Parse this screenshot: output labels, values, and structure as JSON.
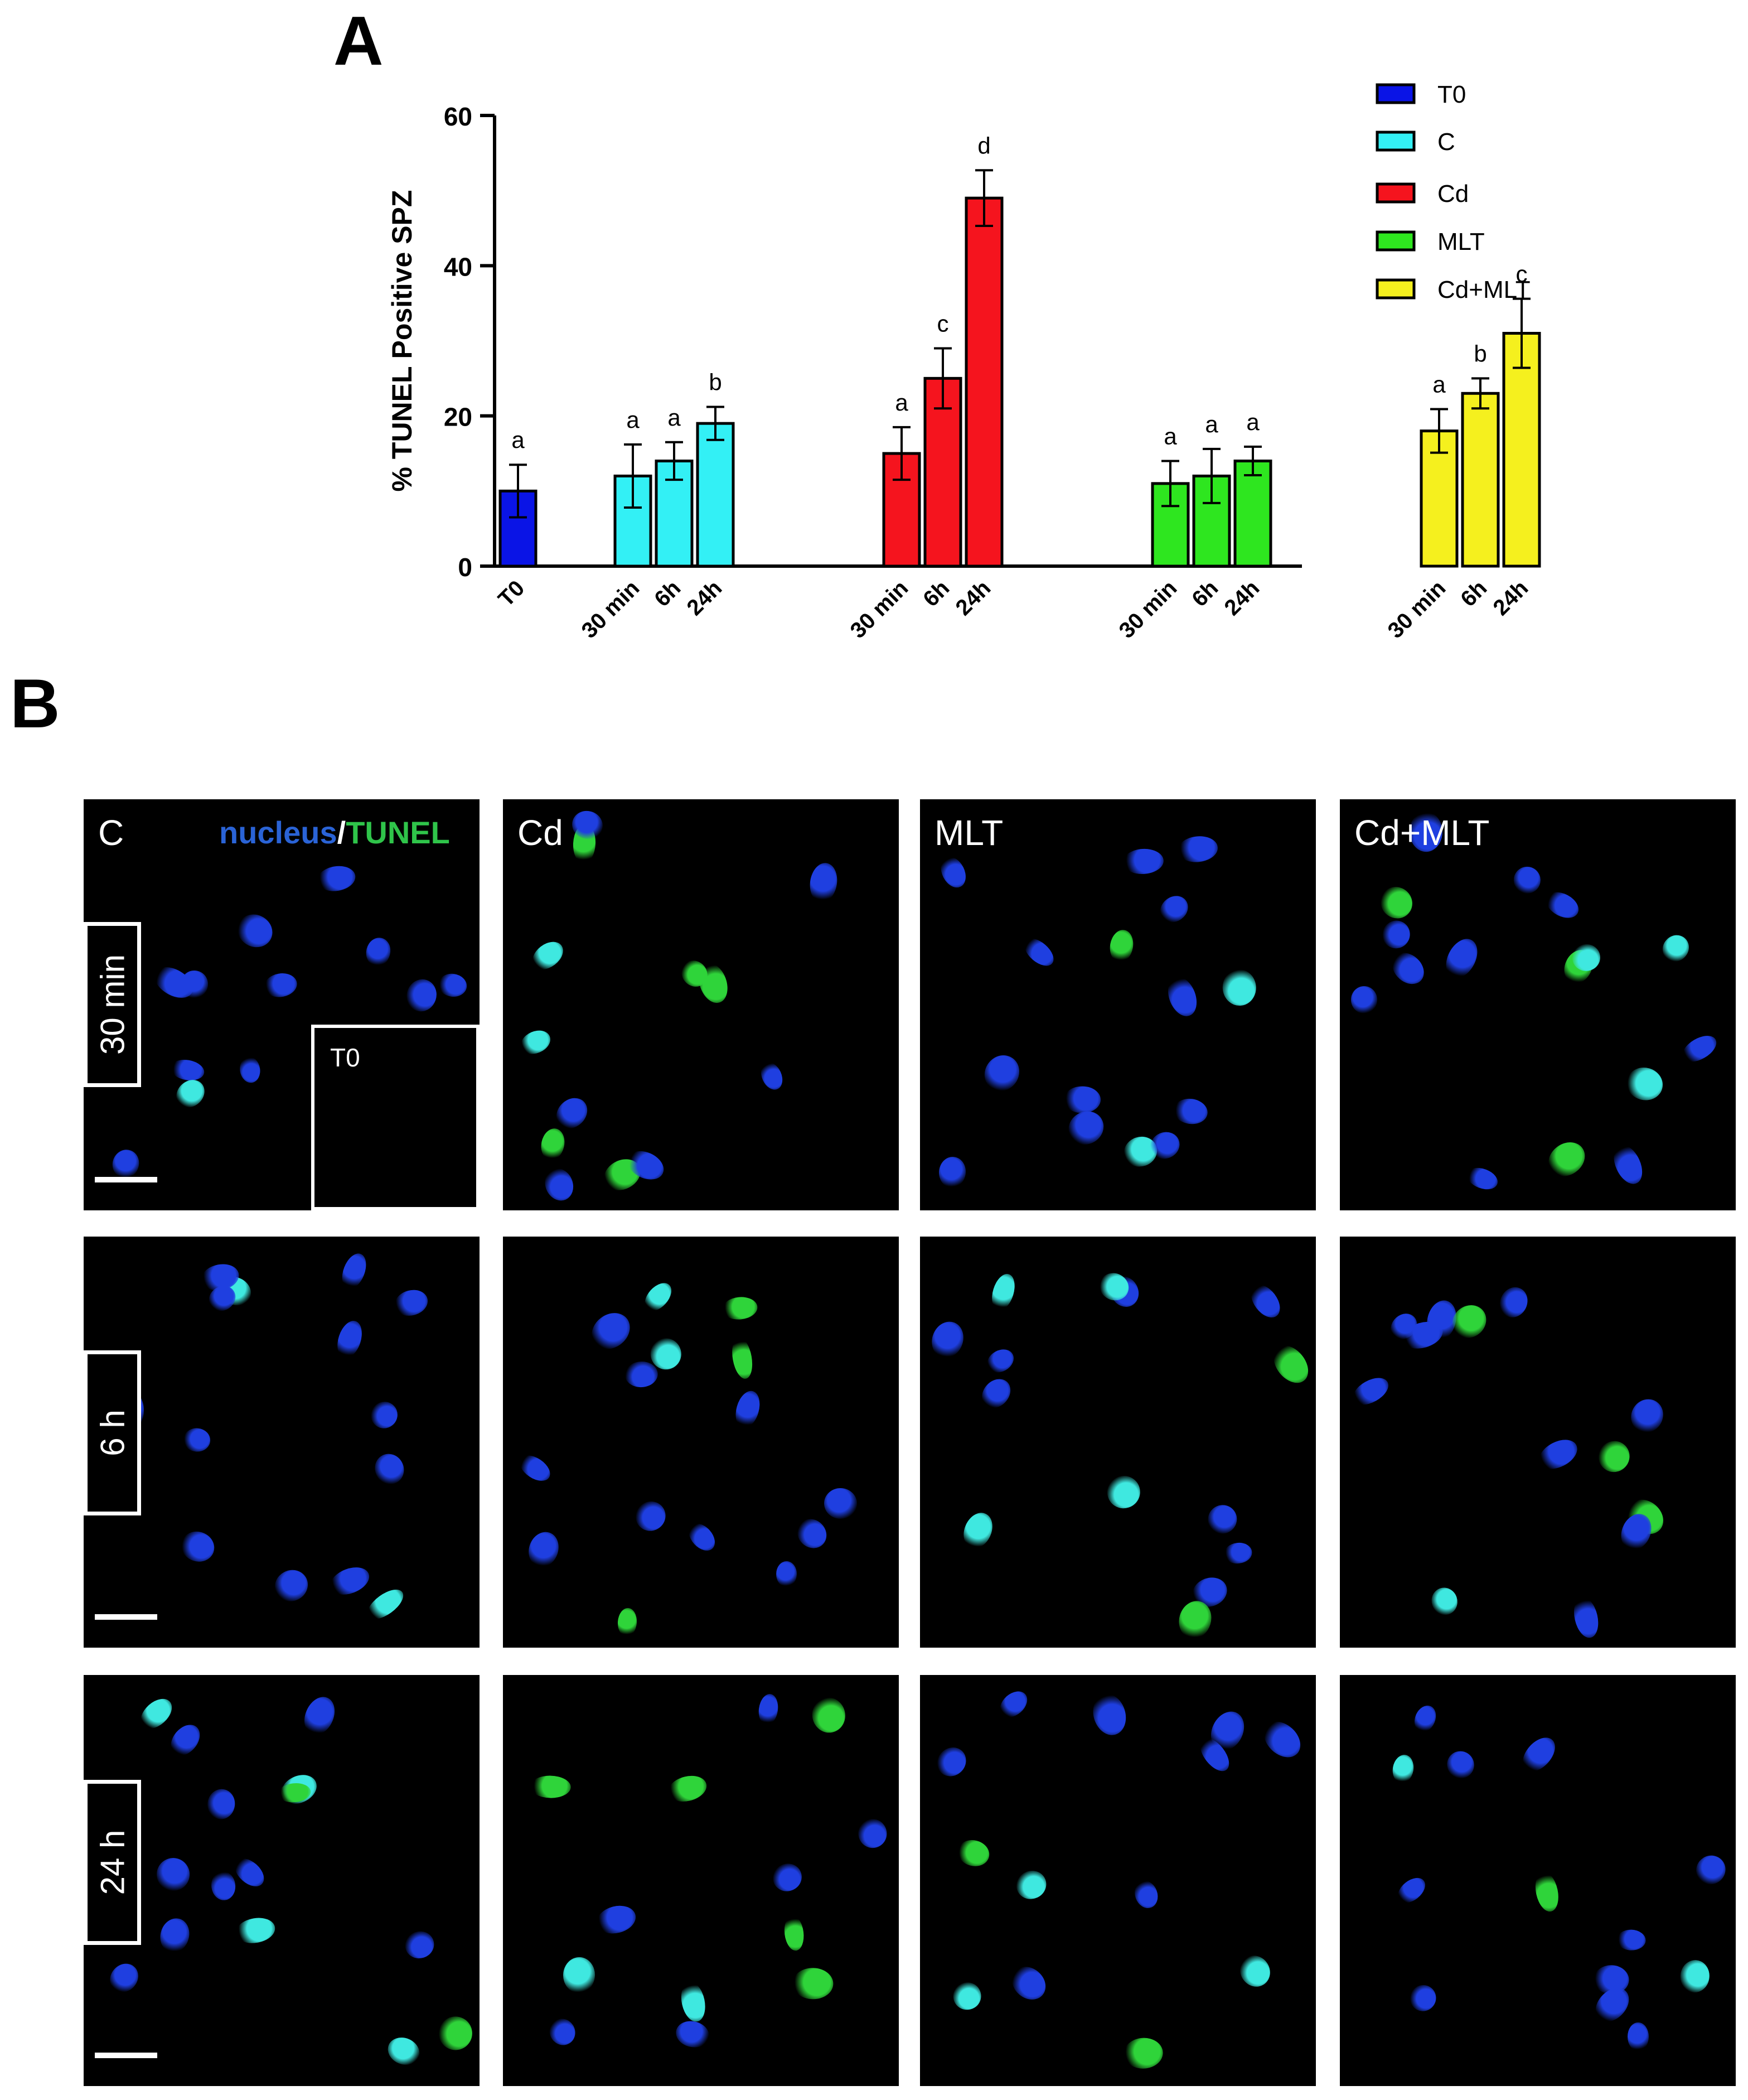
{
  "panel_a_letter": "A",
  "panel_b_letter": "B",
  "chart_data": {
    "type": "bar",
    "title": "",
    "ylabel": "% TUNEL Positive SPZ",
    "xlabel": "",
    "ylim": [
      0,
      60
    ],
    "yticks": [
      0,
      20,
      40,
      60
    ],
    "grid": false,
    "legend_position": "top-right",
    "series": [
      {
        "name": "T0",
        "color": "#0a14e6",
        "categories": [
          "T0"
        ],
        "values": [
          10
        ],
        "errors": [
          3.5
        ],
        "letters": [
          "a"
        ]
      },
      {
        "name": "C",
        "color": "#33f0f5",
        "categories": [
          "30 min",
          "6h",
          "24h"
        ],
        "values": [
          12,
          14,
          19
        ],
        "errors": [
          4.2,
          2.5,
          2.2
        ],
        "letters": [
          "a",
          "a",
          "b"
        ]
      },
      {
        "name": "Cd",
        "color": "#f5141e",
        "categories": [
          "30 min",
          "6h",
          "24h"
        ],
        "values": [
          15,
          25,
          49
        ],
        "errors": [
          3.5,
          4,
          3.7
        ],
        "letters": [
          "a",
          "c",
          "d"
        ]
      },
      {
        "name": "MLT",
        "color": "#2ee61f",
        "categories": [
          "30 min",
          "6h",
          "24h"
        ],
        "values": [
          11,
          12,
          14
        ],
        "errors": [
          3,
          3.6,
          1.9
        ],
        "letters": [
          "a",
          "a",
          "a"
        ]
      },
      {
        "name": "Cd+MLT",
        "color": "#f5f01e",
        "categories": [
          "30 min",
          "6h",
          "24h"
        ],
        "values": [
          18,
          23,
          31
        ],
        "errors": [
          2.9,
          2,
          4.6
        ],
        "letters": [
          "a",
          "b",
          "c"
        ]
      }
    ]
  },
  "micrographs": {
    "columns": [
      "C",
      "Cd",
      "MLT",
      "Cd+MLT"
    ],
    "rows": [
      "30 min",
      "6 h",
      "24 h"
    ],
    "stain_nucleus": "nucleus",
    "stain_sep": "/",
    "stain_tunel": "TUNEL",
    "inset_label": "T0",
    "colors": {
      "nucleus": "#1f3fe0",
      "tunel": "#2fd43a",
      "merged": "#3fe8e0"
    }
  }
}
